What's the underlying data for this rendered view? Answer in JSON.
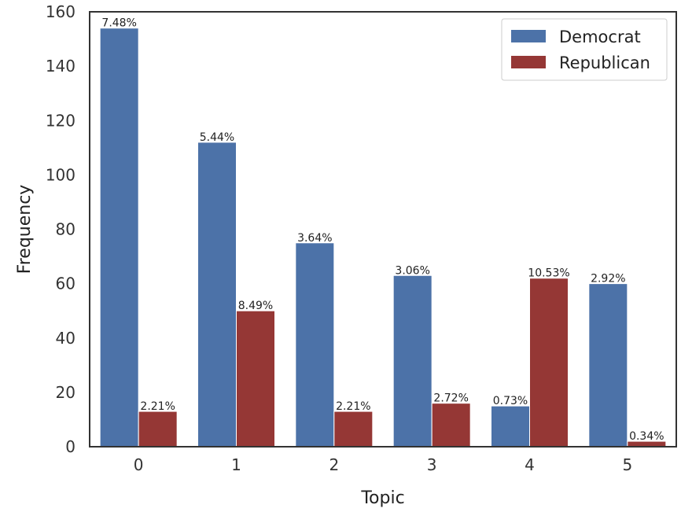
{
  "chart_data": {
    "type": "bar",
    "xlabel": "Topic",
    "ylabel": "Frequency",
    "categories": [
      "0",
      "1",
      "2",
      "3",
      "4",
      "5"
    ],
    "ylim": [
      0,
      160
    ],
    "yticks": [
      0,
      20,
      40,
      60,
      80,
      100,
      120,
      140,
      160
    ],
    "grid": false,
    "legend": "top-right",
    "series": [
      {
        "name": "Democrat",
        "color": "#4c72a8",
        "values": [
          154,
          112,
          75,
          63,
          15,
          60
        ],
        "labels": [
          "7.48%",
          "5.44%",
          "3.64%",
          "3.06%",
          "0.73%",
          "2.92%"
        ]
      },
      {
        "name": "Republican",
        "color": "#953735",
        "values": [
          13,
          50,
          13,
          16,
          62,
          2
        ],
        "labels": [
          "2.21%",
          "8.49%",
          "2.21%",
          "2.72%",
          "10.53%",
          "0.34%"
        ]
      }
    ]
  }
}
